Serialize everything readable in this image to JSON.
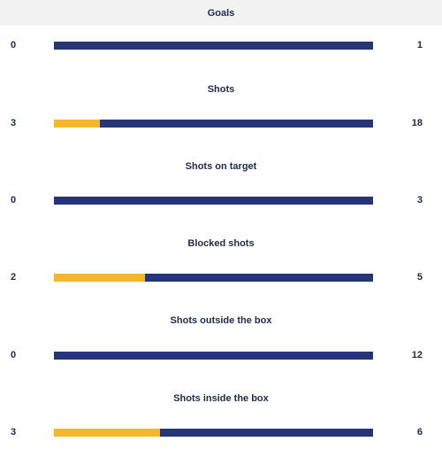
{
  "colors": {
    "home": "#f4b729",
    "away": "#253575",
    "header_bg": "#f2f2f2",
    "text": "#1e2a4a"
  },
  "chart_data": {
    "type": "bar",
    "categories": [
      "Goals",
      "Shots",
      "Shots on target",
      "Blocked shots",
      "Shots outside the box",
      "Shots inside the box"
    ],
    "series": [
      {
        "values": [
          0,
          3,
          0,
          2,
          0,
          3
        ]
      },
      {
        "values": [
          1,
          18,
          3,
          5,
          12,
          6
        ]
      }
    ],
    "stats": [
      {
        "label": "Goals",
        "left": "0",
        "right": "1"
      },
      {
        "label": "Shots",
        "left": "3",
        "right": "18"
      },
      {
        "label": "Shots on target",
        "left": "0",
        "right": "3"
      },
      {
        "label": "Blocked shots",
        "left": "2",
        "right": "5"
      },
      {
        "label": "Shots outside the box",
        "left": "0",
        "right": "12"
      },
      {
        "label": "Shots inside the box",
        "left": "3",
        "right": "6"
      }
    ]
  }
}
